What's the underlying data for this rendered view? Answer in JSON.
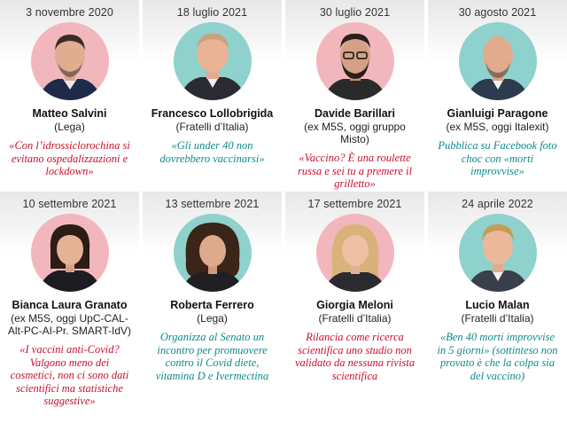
{
  "colors": {
    "pink_bg": "#f2b7bd",
    "teal_bg": "#8fd1cc",
    "quote_red": "#c8102e",
    "quote_teal": "#0e8a8a"
  },
  "cards": [
    {
      "date": "3 novembre 2020",
      "name": "Matteo Salvini",
      "party": "(Lega)",
      "quote": "«Con l’idrossiclorochina si evitano ospedalizzazioni e lockdown»",
      "quote_color": "red",
      "photo_bg": "pink"
    },
    {
      "date": "18 luglio 2021",
      "name": "Francesco Lollobrigida",
      "party": "(Fratelli d’Italia)",
      "quote": "«Gli under 40 non dovrebbero vaccinarsi»",
      "quote_color": "teal",
      "photo_bg": "teal"
    },
    {
      "date": "30 luglio 2021",
      "name": "Davide Barillari",
      "party": "(ex M5S, oggi gruppo Misto)",
      "quote": "«Vaccino? È una roulette russa e sei tu a premere il grilletto»",
      "quote_color": "red",
      "photo_bg": "pink"
    },
    {
      "date": "30 agosto 2021",
      "name": "Gianluigi Paragone",
      "party": "(ex M5S, oggi Italexit)",
      "quote": "Pubblica su Facebook foto choc con «morti improvvise»",
      "quote_color": "teal",
      "photo_bg": "teal"
    },
    {
      "date": "10 settembre 2021",
      "name": "Bianca Laura Granato",
      "party": "(ex M5S, oggi UpC-CAL-Alt-PC-AI-Pr. SMART-IdV)",
      "quote": "«I vaccini anti-Covid? Valgono meno dei cosmetici, non ci sono dati scientifici ma statistiche suggestive»",
      "quote_color": "red",
      "photo_bg": "pink"
    },
    {
      "date": "13 settembre 2021",
      "name": "Roberta Ferrero",
      "party": "(Lega)",
      "quote": "Organizza al Senato un incontro per promuovere contro il Covid diete, vitamina D e Ivermectina",
      "quote_color": "teal",
      "photo_bg": "teal"
    },
    {
      "date": "17 settembre 2021",
      "name": "Giorgia Meloni",
      "party": "(Fratelli d’Italia)",
      "quote": "Rilancia come ricerca scientifica uno studio non validato da nessuna rivista scientifica",
      "quote_color": "red",
      "photo_bg": "pink"
    },
    {
      "date": "24 aprile 2022",
      "name": "Lucio Malan",
      "party": "(Fratelli d’Italia)",
      "quote": "«Ben 40 morti improvvise in 5 giorni» (sottinteso non provato è che la colpa sia del vaccino)",
      "quote_color": "teal",
      "photo_bg": "teal"
    }
  ]
}
